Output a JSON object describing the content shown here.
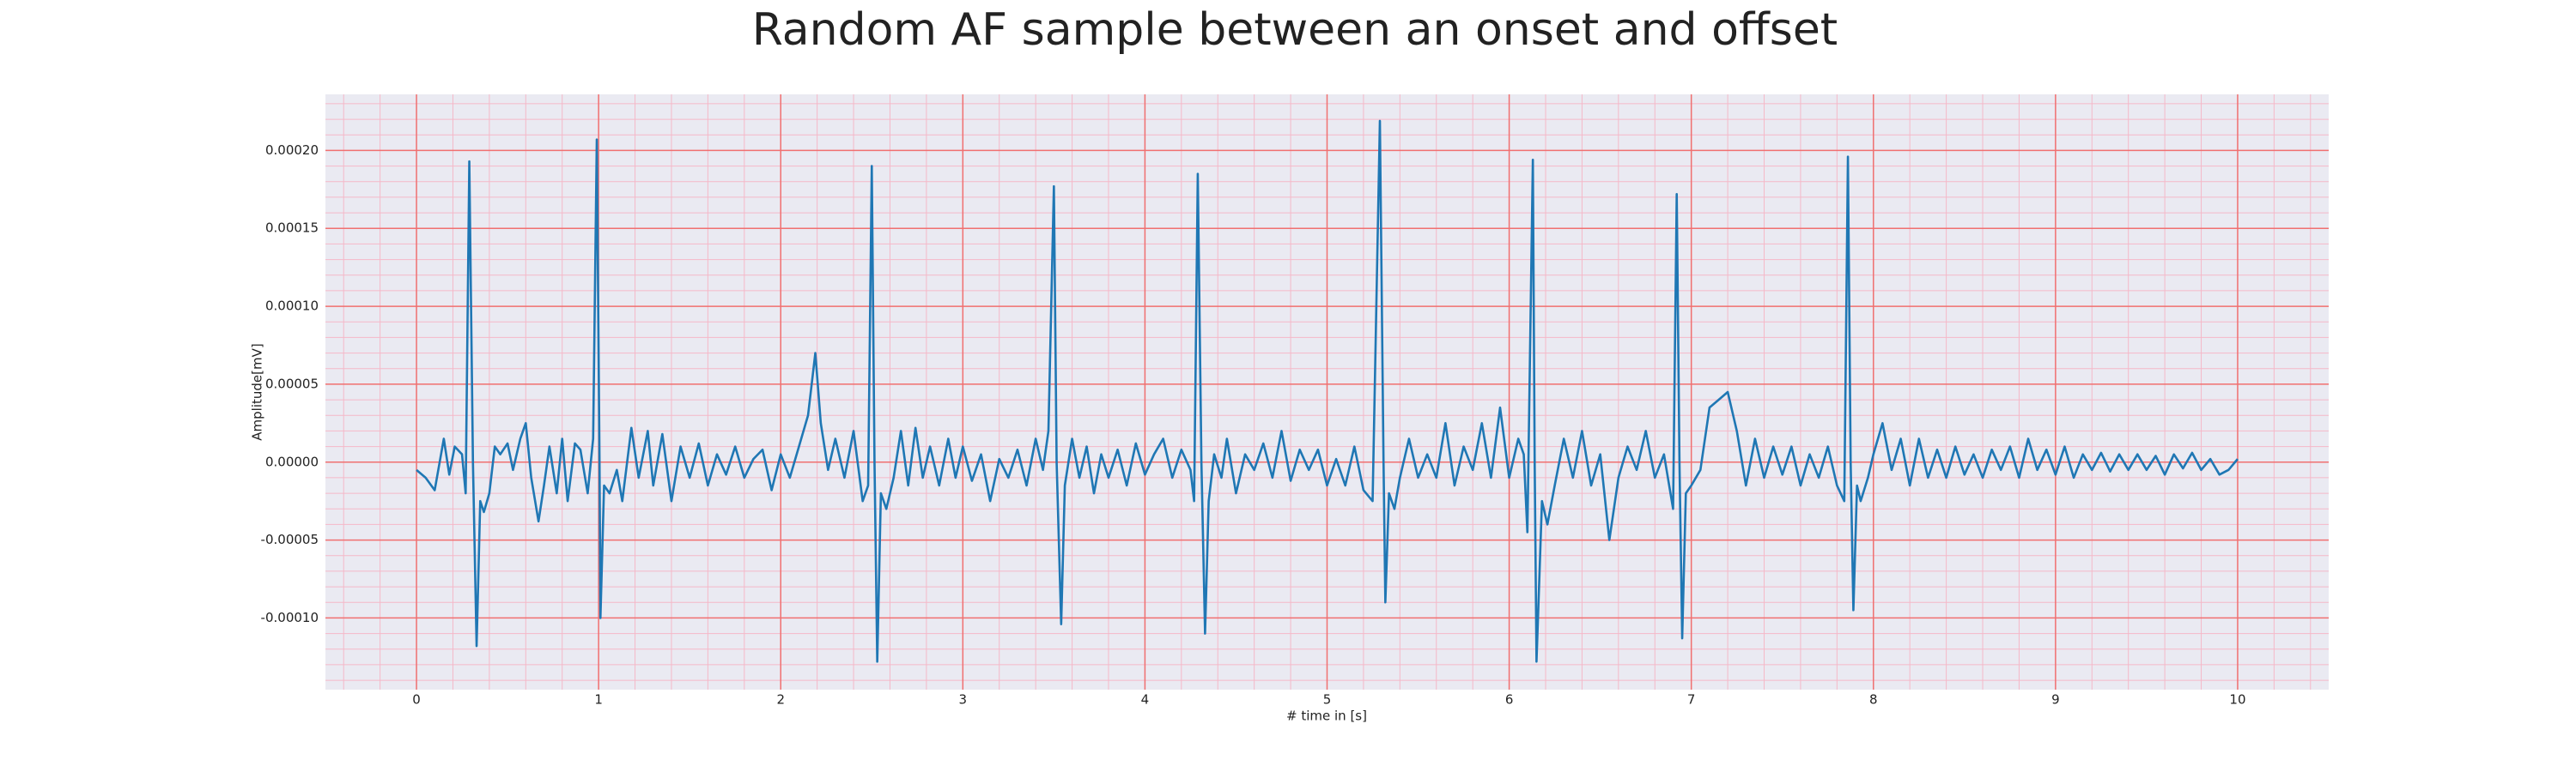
{
  "chart_data": {
    "type": "line",
    "title": "Random AF sample between an onset and offset",
    "xlabel": "# time in [s]",
    "ylabel": "Amplitude[mV]",
    "color": "#1f77b4",
    "background": "#eaeaf2",
    "grid_color": "#f07070",
    "minor_grid_color": "#f5b8c8",
    "grid": true,
    "minor_grid": true,
    "xlim": [
      -0.5,
      10.5
    ],
    "ylim": [
      -0.000146,
      0.000236
    ],
    "xticks": [
      0,
      1,
      2,
      3,
      4,
      5,
      6,
      7,
      8,
      9,
      10
    ],
    "yticks": [
      {
        "value": -0.0001,
        "label": "-0.00010"
      },
      {
        "value": -5e-05,
        "label": "-0.00005"
      },
      {
        "value": 0,
        "label": "0.00000"
      },
      {
        "value": 5e-05,
        "label": "0.00005"
      },
      {
        "value": 0.0001,
        "label": "0.00010"
      },
      {
        "value": 0.00015,
        "label": "0.00015"
      },
      {
        "value": 0.0002,
        "label": "0.00020"
      }
    ],
    "x": [
      0.0,
      0.05,
      0.1,
      0.15,
      0.18,
      0.21,
      0.25,
      0.27,
      0.29,
      0.31,
      0.33,
      0.35,
      0.37,
      0.4,
      0.43,
      0.46,
      0.5,
      0.53,
      0.57,
      0.6,
      0.63,
      0.67,
      0.7,
      0.73,
      0.77,
      0.8,
      0.83,
      0.87,
      0.9,
      0.94,
      0.97,
      0.99,
      1.005,
      1.01,
      1.03,
      1.06,
      1.1,
      1.13,
      1.18,
      1.22,
      1.27,
      1.3,
      1.35,
      1.4,
      1.45,
      1.5,
      1.55,
      1.6,
      1.65,
      1.7,
      1.75,
      1.8,
      1.85,
      1.9,
      1.95,
      2.0,
      2.05,
      2.1,
      2.15,
      2.19,
      2.22,
      2.26,
      2.3,
      2.35,
      2.4,
      2.45,
      2.48,
      2.5,
      2.515,
      2.53,
      2.55,
      2.58,
      2.62,
      2.66,
      2.7,
      2.74,
      2.78,
      2.82,
      2.87,
      2.92,
      2.96,
      3.0,
      3.05,
      3.1,
      3.15,
      3.2,
      3.25,
      3.3,
      3.35,
      3.4,
      3.44,
      3.47,
      3.5,
      3.515,
      3.54,
      3.56,
      3.6,
      3.64,
      3.68,
      3.72,
      3.76,
      3.8,
      3.85,
      3.9,
      3.95,
      4.0,
      4.05,
      4.1,
      4.15,
      4.2,
      4.25,
      4.27,
      4.29,
      4.31,
      4.33,
      4.35,
      4.38,
      4.42,
      4.45,
      4.5,
      4.55,
      4.6,
      4.65,
      4.7,
      4.75,
      4.8,
      4.85,
      4.9,
      4.95,
      5.0,
      5.05,
      5.1,
      5.15,
      5.2,
      5.25,
      5.29,
      5.31,
      5.32,
      5.34,
      5.37,
      5.4,
      5.45,
      5.5,
      5.55,
      5.6,
      5.65,
      5.7,
      5.75,
      5.8,
      5.85,
      5.9,
      5.95,
      6.0,
      6.05,
      6.08,
      6.1,
      6.13,
      6.14,
      6.15,
      6.18,
      6.21,
      6.25,
      6.3,
      6.35,
      6.4,
      6.45,
      6.5,
      6.55,
      6.6,
      6.65,
      6.7,
      6.75,
      6.8,
      6.85,
      6.9,
      6.92,
      6.935,
      6.95,
      6.97,
      7.0,
      7.05,
      7.1,
      7.15,
      7.2,
      7.25,
      7.3,
      7.35,
      7.4,
      7.45,
      7.5,
      7.55,
      7.6,
      7.65,
      7.7,
      7.75,
      7.8,
      7.84,
      7.86,
      7.875,
      7.89,
      7.91,
      7.93,
      7.97,
      8.0,
      8.05,
      8.1,
      8.15,
      8.2,
      8.25,
      8.3,
      8.35,
      8.4,
      8.45,
      8.5,
      8.55,
      8.6,
      8.65,
      8.7,
      8.75,
      8.8,
      8.85,
      8.9,
      8.95,
      9.0,
      9.05,
      9.1,
      9.15,
      9.2,
      9.25,
      9.3,
      9.35,
      9.4,
      9.45,
      9.5,
      9.55,
      9.6,
      9.65,
      9.7,
      9.75,
      9.8,
      9.85,
      9.9,
      9.95,
      10.0
    ],
    "values": [
      -5e-06,
      -1e-05,
      -1.8e-05,
      1.5e-05,
      -8e-06,
      1e-05,
      5e-06,
      -2e-05,
      0.000193,
      0,
      -0.000118,
      -2.5e-05,
      -3.2e-05,
      -2e-05,
      1e-05,
      5e-06,
      1.2e-05,
      -5e-06,
      1.5e-05,
      2.5e-05,
      -1e-05,
      -3.8e-05,
      -1.5e-05,
      1e-05,
      -2e-05,
      1.5e-05,
      -2.5e-05,
      1.2e-05,
      8e-06,
      -2e-05,
      1.5e-05,
      0.000207,
      0,
      -0.0001,
      -1.5e-05,
      -2e-05,
      -5e-06,
      -2.5e-05,
      2.2e-05,
      -1e-05,
      2e-05,
      -1.5e-05,
      1.8e-05,
      -2.5e-05,
      1e-05,
      -1e-05,
      1.2e-05,
      -1.5e-05,
      5e-06,
      -8e-06,
      1e-05,
      -1e-05,
      2e-06,
      8e-06,
      -1.8e-05,
      5e-06,
      -1e-05,
      1e-05,
      3e-05,
      7e-05,
      2.5e-05,
      -5e-06,
      1.5e-05,
      -1e-05,
      2e-05,
      -2.5e-05,
      -1.5e-05,
      0.00019,
      0,
      -0.000128,
      -2e-05,
      -3e-05,
      -1e-05,
      2e-05,
      -1.5e-05,
      2.2e-05,
      -1e-05,
      1e-05,
      -1.5e-05,
      1.5e-05,
      -1e-05,
      1e-05,
      -1.2e-05,
      5e-06,
      -2.5e-05,
      2e-06,
      -1e-05,
      8e-06,
      -1.5e-05,
      1.5e-05,
      -5e-06,
      2e-05,
      0.000177,
      0,
      -0.000104,
      -1.5e-05,
      1.5e-05,
      -1e-05,
      1e-05,
      -2e-05,
      5e-06,
      -1e-05,
      8e-06,
      -1.5e-05,
      1.2e-05,
      -8e-06,
      5e-06,
      1.5e-05,
      -1e-05,
      8e-06,
      -5e-06,
      -2.5e-05,
      0.000185,
      0,
      -0.00011,
      -2.5e-05,
      5e-06,
      -1e-05,
      1.5e-05,
      -2e-05,
      5e-06,
      -5e-06,
      1.2e-05,
      -1e-05,
      2e-05,
      -1.2e-05,
      8e-06,
      -5e-06,
      8e-06,
      -1.5e-05,
      2e-06,
      -1.5e-05,
      1e-05,
      -1.8e-05,
      -2.5e-05,
      0.000219,
      0,
      -9e-05,
      -2e-05,
      -3e-05,
      -1e-05,
      1.5e-05,
      -1e-05,
      5e-06,
      -1e-05,
      2.5e-05,
      -1.5e-05,
      1e-05,
      -5e-06,
      2.5e-05,
      -1e-05,
      3.5e-05,
      -1e-05,
      1.5e-05,
      5e-06,
      -4.5e-05,
      0.000194,
      0,
      -0.000128,
      -2.5e-05,
      -4e-05,
      -1.5e-05,
      1.5e-05,
      -1e-05,
      2e-05,
      -1.5e-05,
      5e-06,
      -5e-05,
      -1e-05,
      1e-05,
      -5e-06,
      2e-05,
      -1e-05,
      5e-06,
      -3e-05,
      0.000172,
      0,
      -0.000113,
      -2e-05,
      -1.5e-05,
      -5e-06,
      3.5e-05,
      4e-05,
      4.5e-05,
      2e-05,
      -1.5e-05,
      1.5e-05,
      -1e-05,
      1e-05,
      -8e-06,
      1e-05,
      -1.5e-05,
      5e-06,
      -1e-05,
      1e-05,
      -1.5e-05,
      -2.5e-05,
      0.000196,
      0,
      -9.5e-05,
      -1.5e-05,
      -2.5e-05,
      -1e-05,
      5e-06,
      2.5e-05,
      -5e-06,
      1.5e-05,
      -1.5e-05,
      1.5e-05,
      -1e-05,
      8e-06,
      -1e-05,
      1e-05,
      -8e-06,
      5e-06,
      -1e-05,
      8e-06,
      -5e-06,
      1e-05,
      -1e-05,
      1.5e-05,
      -5e-06,
      8e-06,
      -8e-06,
      1e-05,
      -1e-05,
      5e-06,
      -5e-06,
      6e-06,
      -6e-06,
      5e-06,
      -5e-06,
      5e-06,
      -5e-06,
      4e-06,
      -8e-06,
      5e-06,
      -4e-06,
      6e-06,
      -5e-06,
      2e-06,
      -8e-06,
      -5e-06,
      2e-06
    ]
  }
}
